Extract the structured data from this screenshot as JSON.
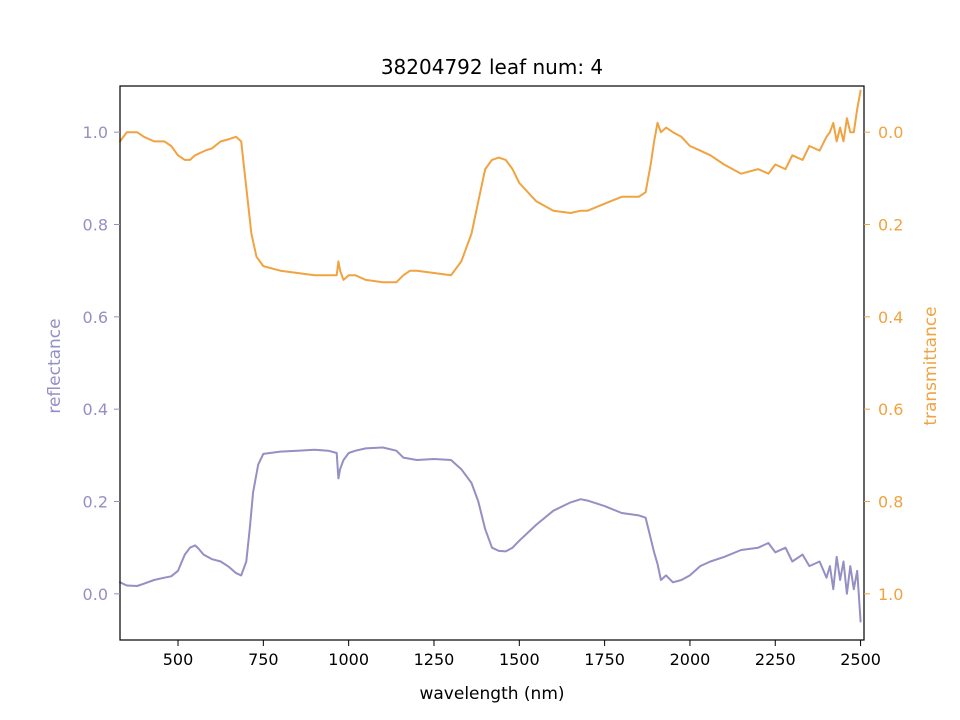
{
  "chart_data": {
    "type": "line",
    "title": "38204792 leaf num: 4",
    "xlabel": "wavelength (nm)",
    "ylabel_left": "reflectance",
    "ylabel_right": "transmittance",
    "xlim": [
      330,
      2510
    ],
    "ylim_left": [
      -0.1,
      1.1
    ],
    "ylim_right": [
      1.1,
      -0.1
    ],
    "x_ticks": [
      500,
      750,
      1000,
      1250,
      1500,
      1750,
      2000,
      2250,
      2500
    ],
    "x_tick_labels": [
      "500",
      "750",
      "1000",
      "1250",
      "1500",
      "1750",
      "2000",
      "2250",
      "2500"
    ],
    "y_left_ticks": [
      0.0,
      0.2,
      0.4,
      0.6,
      0.8,
      1.0
    ],
    "y_left_tick_labels": [
      "0.0",
      "0.2",
      "0.4",
      "0.6",
      "0.8",
      "1.0"
    ],
    "y_right_ticks": [
      0.0,
      0.2,
      0.4,
      0.6,
      0.8,
      1.0
    ],
    "y_right_tick_labels": [
      "0.0",
      "0.2",
      "0.4",
      "0.6",
      "0.8",
      "1.0"
    ],
    "grid": false,
    "colors": {
      "reflectance": "#948fc4",
      "transmittance": "#f0a340"
    },
    "series": [
      {
        "axis": "left",
        "x": [
          330,
          350,
          380,
          400,
          430,
          460,
          480,
          500,
          520,
          535,
          550,
          560,
          575,
          600,
          625,
          650,
          670,
          685,
          700,
          710,
          720,
          735,
          750,
          800,
          850,
          900,
          940,
          965,
          970,
          975,
          985,
          1000,
          1020,
          1050,
          1100,
          1140,
          1160,
          1200,
          1250,
          1300,
          1330,
          1360,
          1380,
          1400,
          1420,
          1440,
          1460,
          1480,
          1500,
          1550,
          1600,
          1650,
          1680,
          1700,
          1750,
          1800,
          1850,
          1870,
          1885,
          1895,
          1905,
          1915,
          1930,
          1950,
          1975,
          2000,
          2030,
          2060,
          2100,
          2150,
          2200,
          2230,
          2250,
          2280,
          2300,
          2330,
          2350,
          2380,
          2400,
          2410,
          2420,
          2430,
          2440,
          2450,
          2460,
          2470,
          2480,
          2490,
          2500
        ],
        "y": [
          0.025,
          0.018,
          0.017,
          0.022,
          0.03,
          0.035,
          0.038,
          0.05,
          0.085,
          0.1,
          0.105,
          0.098,
          0.085,
          0.075,
          0.07,
          0.058,
          0.045,
          0.04,
          0.07,
          0.14,
          0.22,
          0.28,
          0.303,
          0.308,
          0.31,
          0.312,
          0.31,
          0.305,
          0.25,
          0.27,
          0.29,
          0.305,
          0.31,
          0.315,
          0.317,
          0.31,
          0.295,
          0.29,
          0.292,
          0.29,
          0.27,
          0.24,
          0.2,
          0.14,
          0.1,
          0.093,
          0.092,
          0.1,
          0.115,
          0.15,
          0.18,
          0.198,
          0.205,
          0.202,
          0.19,
          0.175,
          0.17,
          0.165,
          0.12,
          0.09,
          0.065,
          0.03,
          0.04,
          0.025,
          0.03,
          0.04,
          0.06,
          0.07,
          0.08,
          0.095,
          0.1,
          0.11,
          0.09,
          0.1,
          0.07,
          0.085,
          0.06,
          0.07,
          0.035,
          0.06,
          0.01,
          0.08,
          0.03,
          0.07,
          0.0,
          0.06,
          0.01,
          0.05,
          -0.06
        ]
      },
      {
        "axis": "right",
        "x": [
          330,
          350,
          380,
          400,
          430,
          460,
          480,
          500,
          520,
          535,
          550,
          565,
          580,
          600,
          625,
          650,
          670,
          685,
          700,
          715,
          730,
          750,
          800,
          850,
          900,
          940,
          965,
          970,
          975,
          985,
          1000,
          1020,
          1050,
          1100,
          1140,
          1160,
          1180,
          1200,
          1250,
          1300,
          1330,
          1360,
          1380,
          1400,
          1420,
          1440,
          1460,
          1480,
          1500,
          1550,
          1600,
          1650,
          1680,
          1700,
          1750,
          1800,
          1850,
          1870,
          1885,
          1895,
          1905,
          1915,
          1930,
          1950,
          1975,
          2000,
          2030,
          2060,
          2100,
          2150,
          2200,
          2230,
          2250,
          2280,
          2300,
          2330,
          2350,
          2380,
          2400,
          2410,
          2420,
          2430,
          2440,
          2450,
          2460,
          2470,
          2480,
          2490,
          2500
        ],
        "y": [
          0.02,
          0.0,
          0.0,
          0.01,
          0.02,
          0.02,
          0.03,
          0.05,
          0.06,
          0.06,
          0.05,
          0.045,
          0.04,
          0.035,
          0.02,
          0.015,
          0.01,
          0.02,
          0.12,
          0.22,
          0.27,
          0.29,
          0.3,
          0.305,
          0.31,
          0.31,
          0.31,
          0.28,
          0.3,
          0.32,
          0.31,
          0.31,
          0.32,
          0.325,
          0.325,
          0.31,
          0.3,
          0.3,
          0.305,
          0.31,
          0.28,
          0.22,
          0.15,
          0.08,
          0.06,
          0.055,
          0.06,
          0.08,
          0.11,
          0.15,
          0.17,
          0.175,
          0.17,
          0.17,
          0.155,
          0.14,
          0.14,
          0.13,
          0.07,
          0.02,
          -0.02,
          0.0,
          -0.01,
          0.0,
          0.01,
          0.03,
          0.04,
          0.05,
          0.07,
          0.09,
          0.08,
          0.09,
          0.07,
          0.08,
          0.05,
          0.06,
          0.03,
          0.04,
          0.01,
          0.0,
          -0.02,
          0.02,
          -0.01,
          0.02,
          -0.03,
          0.0,
          0.0,
          -0.05,
          -0.09
        ]
      }
    ]
  }
}
